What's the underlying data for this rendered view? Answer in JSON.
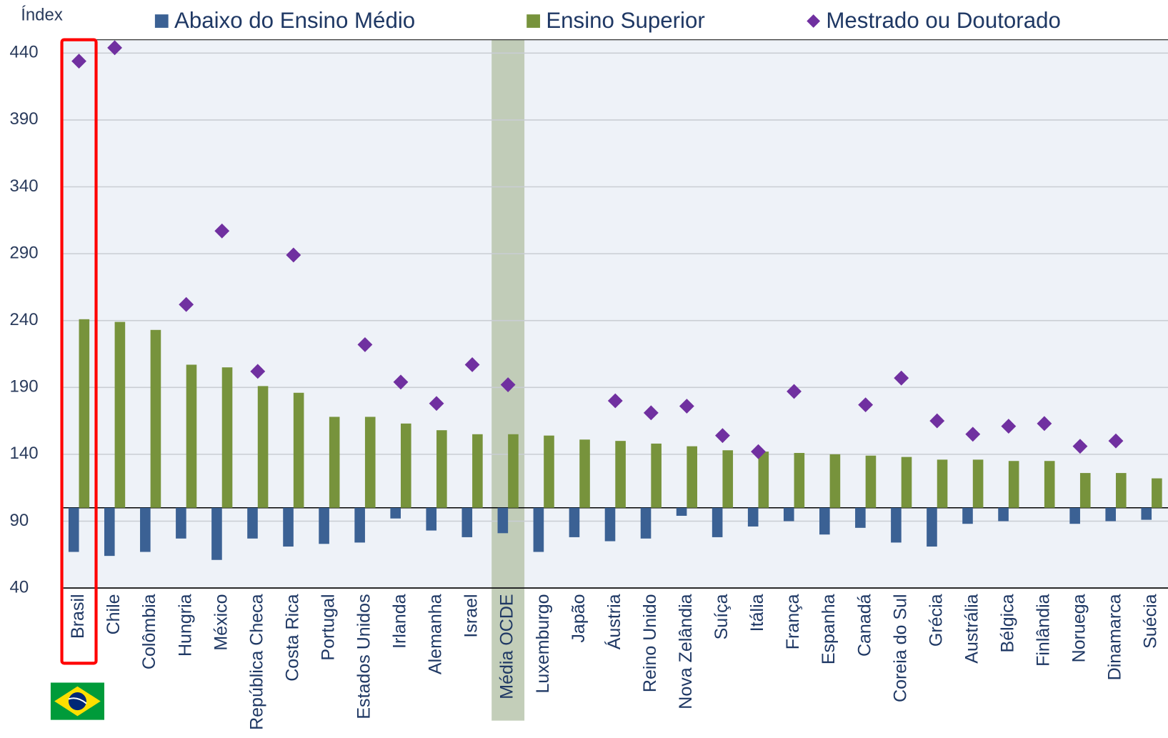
{
  "chart_data": {
    "type": "bar",
    "y_label": "Índex",
    "categories": [
      "Brasil",
      "Chile",
      "Colômbia",
      "Hungria",
      "México",
      "República Checa",
      "Costa Rica",
      "Portugal",
      "Estados Unidos",
      "Irlanda",
      "Alemanha",
      "Israel",
      "Média OCDE",
      "Luxemburgo",
      "Japão",
      "Áustria",
      "Reino Unido",
      "Nova Zelândia",
      "Suíça",
      "Itália",
      "França",
      "Espanha",
      "Canadá",
      "Coreia do Sul",
      "Grécia",
      "Austrália",
      "Bélgica",
      "Finlândia",
      "Noruega",
      "Dinamarca",
      "Suécia"
    ],
    "series": [
      {
        "name": "Abaixo do Ensino Médio",
        "color": "#3b6194",
        "kind": "bar",
        "values": [
          67,
          64,
          67,
          77,
          61,
          77,
          71,
          73,
          74,
          92,
          83,
          78,
          81,
          67,
          78,
          75,
          77,
          94,
          78,
          86,
          90,
          80,
          85,
          74,
          71,
          88,
          90,
          100,
          88,
          90,
          91
        ]
      },
      {
        "name": "Ensino Superior",
        "color": "#77933c",
        "kind": "bar",
        "values": [
          241,
          239,
          233,
          207,
          205,
          191,
          186,
          168,
          168,
          163,
          158,
          155,
          155,
          154,
          151,
          150,
          148,
          146,
          143,
          142,
          141,
          140,
          139,
          138,
          136,
          136,
          135,
          135,
          126,
          126,
          122
        ]
      },
      {
        "name": "Mestrado ou Doutorado",
        "color": "#7030a0",
        "kind": "marker",
        "values": [
          434,
          444,
          null,
          252,
          307,
          202,
          289,
          null,
          222,
          194,
          178,
          207,
          192,
          null,
          null,
          180,
          171,
          176,
          154,
          142,
          187,
          null,
          177,
          197,
          165,
          155,
          161,
          163,
          146,
          150,
          null
        ]
      }
    ],
    "bar_base": 100,
    "ylim": [
      40,
      450
    ],
    "yticks": [
      40,
      90,
      140,
      190,
      240,
      290,
      340,
      390,
      440
    ],
    "grid": true,
    "highlight_category": "Brasil",
    "reference_category": "Média OCDE",
    "legend": "top"
  }
}
